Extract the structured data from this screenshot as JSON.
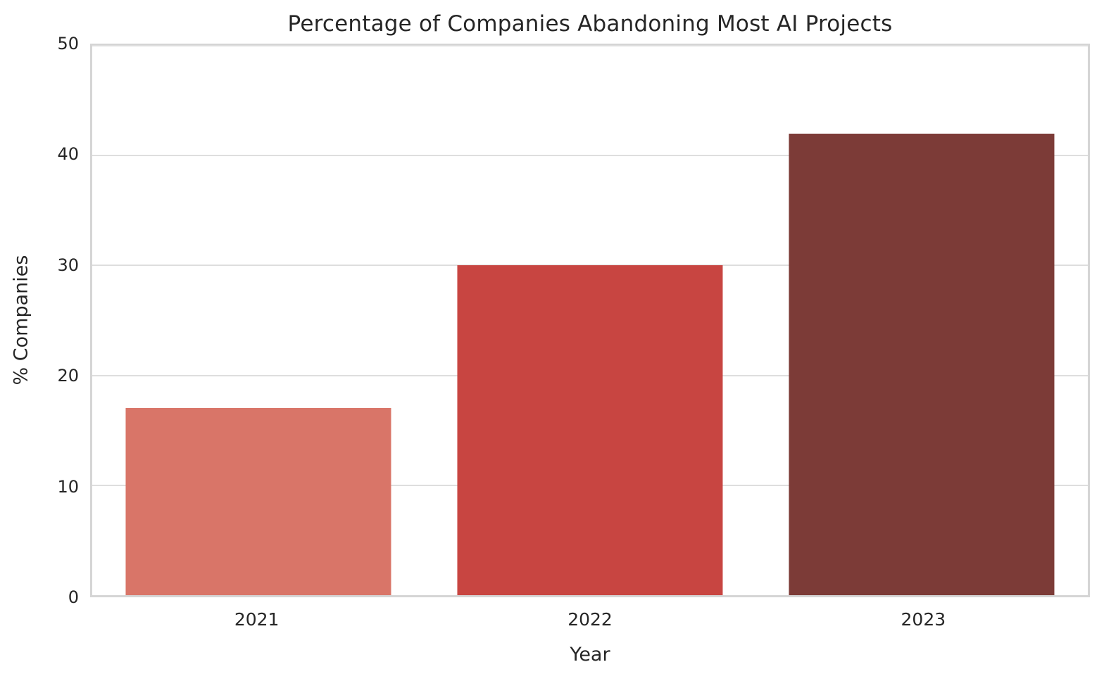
{
  "chart_data": {
    "type": "bar",
    "title": "Percentage of Companies Abandoning Most AI Projects",
    "xlabel": "Year",
    "ylabel": "% Companies",
    "categories": [
      "2021",
      "2022",
      "2023"
    ],
    "values": [
      17,
      30,
      42
    ],
    "ylim": [
      0,
      50
    ],
    "yticks": [
      0,
      10,
      20,
      30,
      40,
      50
    ],
    "bar_colors": [
      "#d97568",
      "#c84541",
      "#7c3b37"
    ],
    "bar_width_fraction": 0.8,
    "grid": "horizontal",
    "legend_position": "none"
  },
  "colors": {
    "background": "#ffffff",
    "frame": "#d5d5d5",
    "gridline": "#dedede",
    "text": "#262626"
  }
}
